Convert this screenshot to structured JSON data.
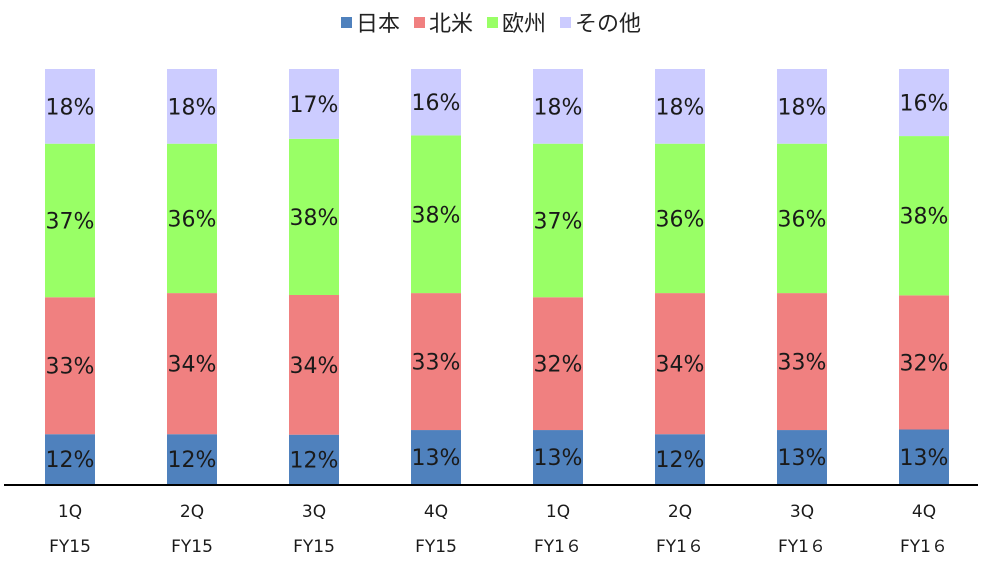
{
  "chart_data": {
    "type": "bar",
    "stacked": true,
    "percent": true,
    "legend_position": "top",
    "categories": [
      [
        "1Q",
        "FY15"
      ],
      [
        "2Q",
        "FY15"
      ],
      [
        "3Q",
        "FY15"
      ],
      [
        "4Q",
        "FY15"
      ],
      [
        "1Q",
        "FY1６"
      ],
      [
        "2Q",
        "FY1６"
      ],
      [
        "3Q",
        "FY1６"
      ],
      [
        "4Q",
        "FY1６"
      ]
    ],
    "series": [
      {
        "name": "日本",
        "color": "#4f81bd",
        "values": [
          12,
          12,
          12,
          13,
          13,
          12,
          13,
          13
        ]
      },
      {
        "name": "北米",
        "color": "#f08080",
        "values": [
          33,
          34,
          34,
          33,
          32,
          34,
          33,
          32
        ]
      },
      {
        "name": "欧州",
        "color": "#99ff66",
        "values": [
          37,
          36,
          38,
          38,
          37,
          36,
          36,
          38
        ]
      },
      {
        "name": "その他",
        "color": "#ccccff",
        "values": [
          18,
          18,
          17,
          16,
          18,
          18,
          18,
          16
        ]
      }
    ],
    "ylim": [
      0,
      100
    ],
    "grid": false,
    "xlabel": "",
    "ylabel": ""
  }
}
